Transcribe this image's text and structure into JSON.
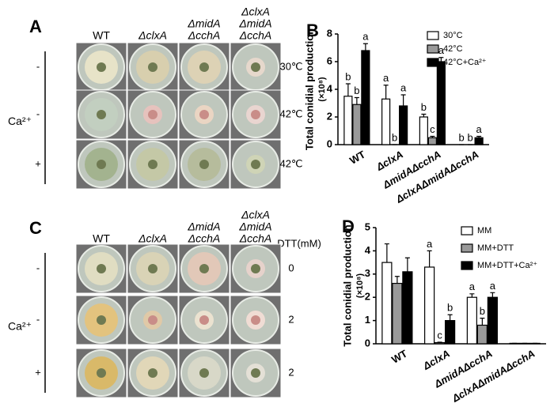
{
  "panels": {
    "A": {
      "label": "A",
      "columns": [
        [
          "WT"
        ],
        [
          "ΔclxA"
        ],
        [
          "ΔmidA",
          "ΔcchA"
        ],
        [
          "ΔclxA",
          "ΔmidA",
          "ΔcchA"
        ]
      ],
      "side_label": "Ca²⁺",
      "rows": [
        {
          "ca": "-",
          "condition": "30℃"
        },
        {
          "ca": "-",
          "condition": "42℃"
        },
        {
          "ca": "+",
          "condition": "42℃"
        }
      ]
    },
    "C": {
      "label": "C",
      "columns": [
        [
          "WT"
        ],
        [
          "ΔclxA"
        ],
        [
          "ΔmidA",
          "ΔcchA"
        ],
        [
          "ΔclxA",
          "ΔmidA",
          "ΔcchA"
        ]
      ],
      "side_label": "Ca²⁺",
      "condition_header": "DTT(mM)",
      "rows": [
        {
          "ca": "-",
          "condition": "0"
        },
        {
          "ca": "-",
          "condition": "2"
        },
        {
          "ca": "+",
          "condition": "2"
        }
      ]
    }
  },
  "chart_data": [
    {
      "type": "bar",
      "label": "B",
      "ylabel": "Total conidial production",
      "ylabel_unit": "(×10⁸)",
      "categories": [
        "WT",
        "ΔclxA",
        "ΔmidAΔcchA",
        "ΔclxAΔmidAΔcchA"
      ],
      "ylim": [
        0,
        8
      ],
      "yticks": [
        0,
        2,
        4,
        6,
        8
      ],
      "series": [
        {
          "name": "30°C",
          "color": "#ffffff",
          "values": [
            3.5,
            3.3,
            2.0,
            0
          ],
          "errors": [
            0.9,
            1.0,
            0.2,
            0
          ],
          "letters": [
            "b",
            "a",
            "b",
            "b"
          ]
        },
        {
          "name": "42°C",
          "color": "#999999",
          "values": [
            2.9,
            0,
            0.5,
            0
          ],
          "errors": [
            0.5,
            0,
            0.1,
            0
          ],
          "letters": [
            "b",
            "b",
            "c",
            "b"
          ]
        },
        {
          "name": "42°C+Ca²⁺",
          "color": "#000000",
          "values": [
            6.8,
            2.8,
            6.0,
            0.5
          ],
          "errors": [
            0.5,
            0.8,
            0.3,
            0.1
          ],
          "letters": [
            "a",
            "a",
            "a",
            "a"
          ]
        }
      ]
    },
    {
      "type": "bar",
      "label": "D",
      "ylabel": "Total conidial production",
      "ylabel_unit": "(×10⁸)",
      "categories": [
        "WT",
        "ΔclxA",
        "ΔmidAΔcchA",
        "ΔclxAΔmidAΔcchA"
      ],
      "ylim": [
        0,
        5
      ],
      "yticks": [
        0,
        1,
        2,
        3,
        4,
        5
      ],
      "series": [
        {
          "name": "MM",
          "color": "#ffffff",
          "values": [
            3.5,
            3.3,
            2.0,
            0.02
          ],
          "errors": [
            0.8,
            0.7,
            0.15,
            0
          ],
          "letters": [
            null,
            "a",
            "a",
            null
          ]
        },
        {
          "name": "MM+DTT",
          "color": "#999999",
          "values": [
            2.6,
            0.05,
            0.8,
            0.02
          ],
          "errors": [
            0.3,
            0.02,
            0.3,
            0
          ],
          "letters": [
            null,
            "c",
            "b",
            null
          ]
        },
        {
          "name": "MM+DTT+Ca²⁺",
          "color": "#000000",
          "values": [
            3.1,
            1.0,
            2.0,
            0.02
          ],
          "errors": [
            0.6,
            0.25,
            0.2,
            0
          ],
          "letters": [
            null,
            "b",
            "a",
            null
          ]
        }
      ]
    }
  ]
}
